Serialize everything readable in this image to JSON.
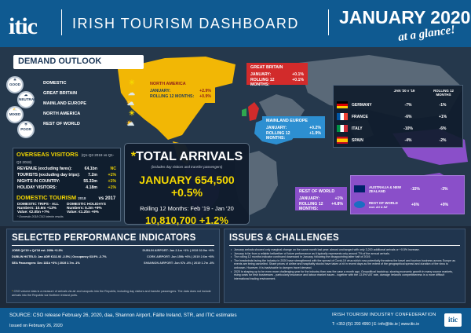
{
  "header": {
    "logo": "itic",
    "title": "IRISH TOURISM DASHBOARD",
    "month": "JANUARY 2020",
    "tagline": "at a glance!"
  },
  "demand_outlook": {
    "title": "DEMAND OUTLOOK",
    "levels": [
      "GOOD",
      "NEUTRAL",
      "MIXED",
      "POOR"
    ],
    "items": [
      {
        "label": "DOMESTIC",
        "icon": "sun-icon"
      },
      {
        "label": "GREAT BRITAIN",
        "icon": "cloud-icon"
      },
      {
        "label": "MAINLAND EUROPE",
        "icon": "sun-cloud-icon"
      },
      {
        "label": "NORTH AMERICA",
        "icon": "sun-icon"
      },
      {
        "label": "REST OF WORLD",
        "icon": "sun-cloud-icon"
      }
    ]
  },
  "regions": {
    "north_america": {
      "name": "NORTH AMERICA",
      "jan_label": "JANUARY:",
      "jan": "+2.9%",
      "r12_label": "ROLLING 12 MONTHS:",
      "r12": "+0.9%"
    },
    "great_britain": {
      "name": "GREAT BRITAIN",
      "jan_label": "JANUARY:",
      "jan": "+0.1%",
      "r12_label": "ROLLING 12 MONTHS:",
      "r12": "+0.1%"
    },
    "mainland_europe": {
      "name": "MAINLAND EUROPE",
      "jan_label": "JANUARY:",
      "jan": "+0.2%",
      "r12_label": "ROLLING 12 MONTHS:",
      "r12": "+1.9%"
    },
    "rest_of_world": {
      "name": "REST OF WORLD",
      "jan_label": "JANUARY:",
      "jan": "+1%",
      "r12_label": "ROLLING 12 MONTHS:",
      "r12": "+4.8%"
    }
  },
  "europe_table": {
    "col1": "JAN '20 v '19",
    "col2": "ROLLING 12 MONTHS",
    "rows": [
      {
        "country": "GERMANY",
        "jan": "-7%",
        "r12": "-1%"
      },
      {
        "country": "FRANCE",
        "jan": "-6%",
        "r12": "+1%"
      },
      {
        "country": "ITALY",
        "jan": "-10%",
        "r12": "-6%"
      },
      {
        "country": "SPAIN",
        "jan": "-4%",
        "r12": "-2%"
      }
    ]
  },
  "row_table": {
    "col1": "JAN '20 v '19",
    "col2": "ROLLING 12 MONTHS",
    "rows": [
      {
        "country": "AUSTRALIA & NEW ZEALAND",
        "jan": "-15%",
        "r12": "-3%"
      },
      {
        "country": "REST OF WORLD",
        "note": "excl. AU & NZ",
        "jan": "+6%",
        "r12": "+9%"
      }
    ]
  },
  "overseas": {
    "title": "OVERSEAS VISITORS",
    "subtitle": "(Q1-Q3 2019 vs Q1-Q3 2018)",
    "rows": [
      {
        "label": "REVENUE (excluding fares):",
        "value": "€4.1bn",
        "pct": "NC"
      },
      {
        "label": "TOURISTS (excluding day trips):",
        "value": "7.2m",
        "pct": "+1%"
      },
      {
        "label": "NIGHTS IN COUNTRY:",
        "value": "55.33m",
        "pct": "+1%"
      },
      {
        "label": "HOLIDAY VISITORS:",
        "value": "4.18m",
        "pct": "+1%"
      }
    ]
  },
  "domestic": {
    "title": "DOMESTIC TOURISM",
    "year": "2018",
    "vs": "vs 2017",
    "trips_title": "DOMESTIC TRIPS - ALL",
    "trips_numbers": "Numbers: 10.6m +13%",
    "trips_value": "Value: €2.0bn +7%",
    "hol_title": "DOMESTIC HOLIDAYS",
    "hol_numbers": "Numbers: 5.3m +9%",
    "hol_value": "Value: €1.2bn +9%",
    "footnote": "* Domestic 2018 CSO Interim results"
  },
  "total_arrivals": {
    "title": "TOTAL ARRIVALS",
    "subtitle": "(includes day visitors and transfer passengers)",
    "january_line": "JANUARY 654,500 +0.5%",
    "rolling_label": "Rolling 12 Months: Feb '19 - Jan '20",
    "rolling_line": "10,810,700 +1.2%"
  },
  "performance": {
    "title": "SELECTED PERFORMANCE INDICATORS",
    "left": [
      "JOBS Q4'19 v Q4'18 est. 269k +2.3%",
      "DUBLIN HOTELS: Jan ADR €111.92 -2.5% | Occupancy 63.9% -2.7%",
      "SEA Passengers: Dec 181k +3% | 2019 2.7m -1%"
    ],
    "right": [
      "DUBLIN AIRPORT: Jan 2.1m +1% | 2019 32.9m +6%",
      "CORK AIRPORT: Jan 159k +6% | 2019 2.6m +8%",
      "SHANNON AIRPORT: Jan 97k -8% | 2019 1.7m -8%"
    ],
    "note": "CSO volume data is a measure of arrivals via air and seaports into the Republic, including day visitors and transfer passengers. The data does not include arrivals into the Republic via Northern Ireland ports."
  },
  "issues": {
    "title": "ISSUES & CHALLENGES",
    "items": [
      "January arrivals showed only marginal change on the same month last year: almost unchanged with only 3,200 additional arrivals or +0.5% increase.",
      "January is far from a reliable bellwether of future performance as it typically represents only around 7% of the annual arrivals.",
      "The rolling 12 months indicator continued downward in January, following the disappointing latter half of 2019.",
      "The headwinds facing the industry in 2020 have strengthened with the spread of Covid-19 virus which now potentially threatens the travel and tourism business across Europe as events are being cancelled. Share prices of airline and hospitality stocks have taken a hit in recent days as the extent of the geographical spread and duration of the virus is unknown. However, it is inadvisable to dampen travel demand.",
      "2020 is shaping up to be even more challenging year for the industry than was the case a month ago. Geopolitical backdrop, slowing economic growth in many source markets, rising costs for Irish businesses - particularly insurance and labour market issues - together with the 13.5% VAT rate, damage Ireland's competitiveness in a more difficult international trading environment."
    ]
  },
  "footer": {
    "source": "SOURCE: CSO release February 26, 2020, daa, Shannon Airport, Fáilte Ireland, STR, and ITIC estimates",
    "issued": "Issued on February 26, 2020",
    "org": "IRISH TOURISM INDUSTRY CONFEDERATION",
    "contact": "T: +353 (0)1 293 4950 | E: info@itic.ie | www.itic.ie",
    "mini_logo": "itic"
  },
  "colors": {
    "header_blue": "#0f5a91",
    "north_america": "#f2b705",
    "great_britain": "#d22b2b",
    "mainland_europe": "#2d8fd1",
    "rest_of_world": "#8a4fc9",
    "highlight_yellow": "#f5d800",
    "negative_red": "#e33b3b"
  }
}
